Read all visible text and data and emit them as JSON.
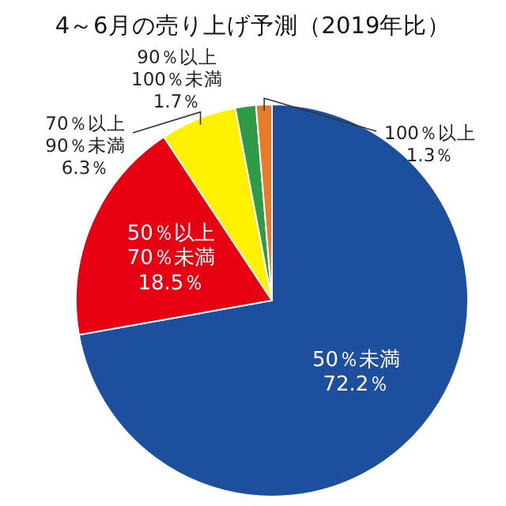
{
  "chart_data": {
    "type": "pie",
    "title": "4～6月の売り上げ予測（2019年比）",
    "categories": [
      "50％未満",
      "50％以上\n70％未満",
      "70％以上\n90％未満",
      "90％以上\n100％未満",
      "100％以上"
    ],
    "values": [
      72.2,
      18.5,
      6.3,
      1.7,
      1.3
    ],
    "colors": [
      "#1d4f9f",
      "#e60012",
      "#fff100",
      "#2f9a48",
      "#e87a28"
    ],
    "value_labels": [
      "72.2％",
      "18.5％",
      "6.3％",
      "1.7％",
      "1.3％"
    ],
    "legend": false
  }
}
